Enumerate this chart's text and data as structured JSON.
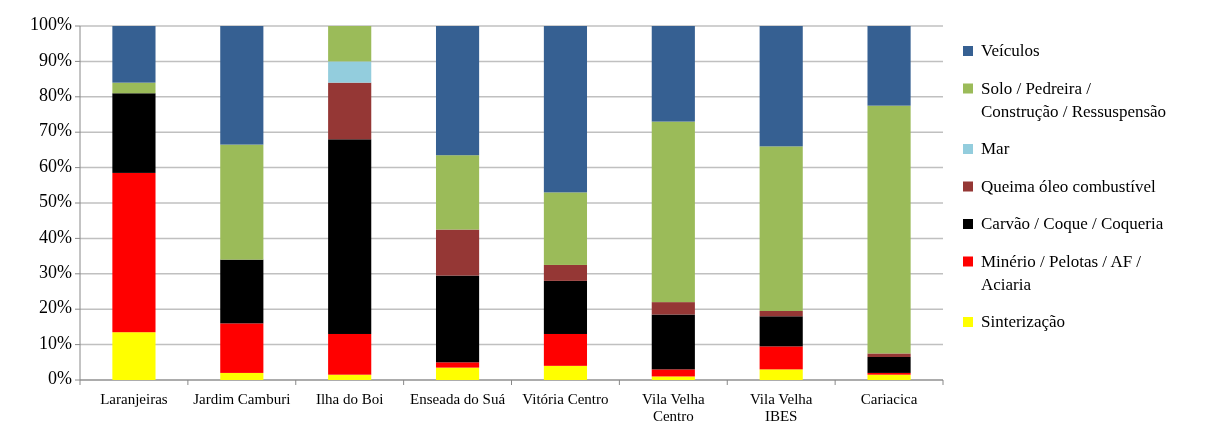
{
  "chart_data": {
    "type": "bar",
    "stacked": true,
    "categories": [
      "Laranjeiras",
      "Jardim Camburi",
      "Ilha do Boi",
      "Enseada do Suá",
      "Vitória Centro",
      "Vila Velha Centro",
      "Vila Velha IBES",
      "Cariacica"
    ],
    "series": [
      {
        "name": "Sinterização",
        "color": "#ffff00",
        "values": [
          13.5,
          2,
          1.5,
          3.5,
          4,
          1,
          3,
          1.5
        ]
      },
      {
        "name": "Minério / Pelotas / AF / Aciaria",
        "color": "#ff0000",
        "values": [
          45,
          14,
          11.5,
          1.5,
          9,
          2,
          6.5,
          0.5
        ]
      },
      {
        "name": "Carvão / Coque / Coqueria",
        "color": "#000000",
        "values": [
          22.5,
          18,
          55,
          24.5,
          15,
          15.5,
          8.5,
          4.5
        ]
      },
      {
        "name": "Queima óleo combustível",
        "color": "#953735",
        "values": [
          0,
          0,
          16,
          13,
          4.5,
          3.5,
          1.5,
          1
        ]
      },
      {
        "name": "Mar",
        "color": "#93cddd",
        "values": [
          0,
          0,
          6,
          0,
          0,
          0,
          0,
          0
        ]
      },
      {
        "name": "Solo / Pedreira / Construção / Ressuspensão",
        "color": "#9bbb59",
        "values": [
          3,
          32.5,
          10,
          21,
          20.5,
          51,
          46.5,
          70
        ]
      },
      {
        "name": "Veículos",
        "color": "#366092",
        "values": [
          16,
          33.5,
          0,
          36.5,
          47,
          27,
          34,
          22.5
        ]
      }
    ],
    "ylim": [
      0,
      100
    ],
    "yticks": [
      {
        "value": 0,
        "label": "0%"
      },
      {
        "value": 10,
        "label": "10%"
      },
      {
        "value": 20,
        "label": "20%"
      },
      {
        "value": 30,
        "label": "30%"
      },
      {
        "value": 40,
        "label": "40%"
      },
      {
        "value": 50,
        "label": "50%"
      },
      {
        "value": 60,
        "label": "60%"
      },
      {
        "value": 70,
        "label": "70%"
      },
      {
        "value": 80,
        "label": "80%"
      },
      {
        "value": 90,
        "label": "90%"
      },
      {
        "value": 100,
        "label": "100%"
      }
    ],
    "grid": "y",
    "legend": "right"
  }
}
